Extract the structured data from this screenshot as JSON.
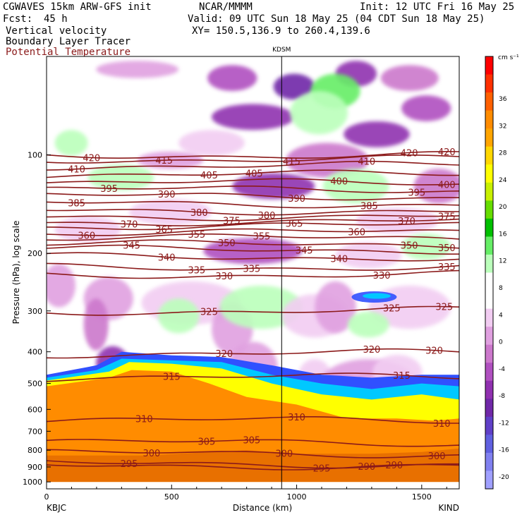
{
  "header": {
    "model": "CGWAVES 15km ARW-GFS init",
    "org": "NCAR/MMMM",
    "init": "Init: 12 UTC Fri 16 May 25",
    "fcst_label": "Fcst:",
    "fcst_value": "45 h",
    "valid": "Valid: 09 UTC Sun 18 May 25 (04 CDT Sun 18 May 25)",
    "field1": "Vertical velocity",
    "field2": "Boundary Layer Tracer",
    "field3": "Potential Temperature",
    "xy": "XY= 150.5,136.9 to 260.4,139.6"
  },
  "colors": {
    "theta_contour": "#8b1a1a",
    "panel_border": "#000000"
  },
  "chart_data": {
    "type": "heatmap",
    "xlabel": "Distance (km)",
    "ylabel": "Pressure (hPa), log scale",
    "x_range": [
      0,
      1650
    ],
    "x_ticks": [
      0,
      500,
      1000,
      1500
    ],
    "y_range": [
      1050,
      50
    ],
    "y_scale": "log",
    "y_ticks": [
      100,
      200,
      300,
      400,
      500,
      600,
      700,
      800,
      900,
      1000
    ],
    "station_left": "KBJC",
    "station_right": "KIND",
    "station_marker": {
      "label": "KDSM",
      "distance_km": 940
    },
    "colorbar": {
      "units": "cm s⁻¹",
      "levels": [
        36,
        32,
        28,
        24,
        20,
        16,
        12,
        8,
        4,
        0,
        -4,
        -8,
        -12,
        -16,
        -20
      ],
      "colors": [
        "#ff0000",
        "#ff3000",
        "#ff6000",
        "#ff8c00",
        "#ffa500",
        "#ffd700",
        "#ffff00",
        "#c8f000",
        "#66dd00",
        "#00c000",
        "#66ee66",
        "#bbffbb",
        "#ffffff",
        "#ffffff",
        "#f2cdf2",
        "#e0a0e0",
        "#cc78cc",
        "#b050c0",
        "#9030b0",
        "#7028a8",
        "#6040c8",
        "#6060e0",
        "#8080f0",
        "#a0a0ff"
      ]
    },
    "theta_contours": [
      {
        "value": 420,
        "pressure_hPa": 100,
        "labels": [
          {
            "x": 180,
            "t": "420"
          },
          {
            "x": 1450,
            "t": "420"
          },
          {
            "x": 1600,
            "t": "420"
          }
        ]
      },
      {
        "value": 415,
        "pressure_hPa": 103,
        "labels": [
          {
            "x": 470,
            "t": "415"
          },
          {
            "x": 980,
            "t": "415"
          }
        ]
      },
      {
        "value": 410,
        "pressure_hPa": 108,
        "labels": [
          {
            "x": 120,
            "t": "410"
          },
          {
            "x": 1280,
            "t": "410"
          }
        ]
      },
      {
        "value": 405,
        "pressure_hPa": 115,
        "labels": [
          {
            "x": 650,
            "t": "405"
          },
          {
            "x": 830,
            "t": "405"
          }
        ]
      },
      {
        "value": 400,
        "pressure_hPa": 122,
        "labels": [
          {
            "x": 1170,
            "t": "400"
          },
          {
            "x": 1600,
            "t": "400"
          }
        ]
      },
      {
        "value": 395,
        "pressure_hPa": 128,
        "labels": [
          {
            "x": 250,
            "t": "395"
          },
          {
            "x": 1480,
            "t": "395"
          }
        ]
      },
      {
        "value": 390,
        "pressure_hPa": 134,
        "labels": [
          {
            "x": 480,
            "t": "390"
          },
          {
            "x": 1000,
            "t": "390"
          }
        ]
      },
      {
        "value": 385,
        "pressure_hPa": 141,
        "labels": [
          {
            "x": 120,
            "t": "385"
          },
          {
            "x": 1290,
            "t": "385"
          }
        ]
      },
      {
        "value": 380,
        "pressure_hPa": 148,
        "labels": [
          {
            "x": 610,
            "t": "380"
          },
          {
            "x": 880,
            "t": "380"
          }
        ]
      },
      {
        "value": 375,
        "pressure_hPa": 154,
        "labels": [
          {
            "x": 740,
            "t": "375"
          },
          {
            "x": 1600,
            "t": "375"
          }
        ]
      },
      {
        "value": 370,
        "pressure_hPa": 160,
        "labels": [
          {
            "x": 330,
            "t": "370"
          },
          {
            "x": 1440,
            "t": "370"
          }
        ]
      },
      {
        "value": 365,
        "pressure_hPa": 165,
        "labels": [
          {
            "x": 470,
            "t": "365"
          },
          {
            "x": 990,
            "t": "365"
          }
        ]
      },
      {
        "value": 360,
        "pressure_hPa": 173,
        "labels": [
          {
            "x": 160,
            "t": "360"
          },
          {
            "x": 1240,
            "t": "360"
          }
        ]
      },
      {
        "value": 355,
        "pressure_hPa": 180,
        "labels": [
          {
            "x": 600,
            "t": "355"
          },
          {
            "x": 860,
            "t": "355"
          }
        ]
      },
      {
        "value": 350,
        "pressure_hPa": 188,
        "labels": [
          {
            "x": 720,
            "t": "350"
          },
          {
            "x": 1450,
            "t": "350"
          },
          {
            "x": 1600,
            "t": "350"
          }
        ]
      },
      {
        "value": 345,
        "pressure_hPa": 195,
        "labels": [
          {
            "x": 340,
            "t": "345"
          },
          {
            "x": 1030,
            "t": "345"
          }
        ]
      },
      {
        "value": 340,
        "pressure_hPa": 205,
        "labels": [
          {
            "x": 480,
            "t": "340"
          },
          {
            "x": 1170,
            "t": "340"
          }
        ]
      },
      {
        "value": 335,
        "pressure_hPa": 220,
        "labels": [
          {
            "x": 600,
            "t": "335"
          },
          {
            "x": 820,
            "t": "335"
          },
          {
            "x": 1600,
            "t": "335"
          }
        ]
      },
      {
        "value": 330,
        "pressure_hPa": 232,
        "labels": [
          {
            "x": 710,
            "t": "330"
          },
          {
            "x": 1340,
            "t": "330"
          }
        ]
      },
      {
        "value": 325,
        "pressure_hPa": 300,
        "labels": [
          {
            "x": 650,
            "t": "325"
          },
          {
            "x": 1380,
            "t": "325"
          },
          {
            "x": 1590,
            "t": "325"
          }
        ]
      },
      {
        "value": 320,
        "pressure_hPa": 405,
        "labels": [
          {
            "x": 710,
            "t": "320"
          },
          {
            "x": 1300,
            "t": "320"
          },
          {
            "x": 1550,
            "t": "320"
          }
        ]
      },
      {
        "value": 315,
        "pressure_hPa": 480,
        "labels": [
          {
            "x": 500,
            "t": "315"
          },
          {
            "x": 1420,
            "t": "315"
          }
        ]
      },
      {
        "value": 310,
        "pressure_hPa": 650,
        "labels": [
          {
            "x": 390,
            "t": "310"
          },
          {
            "x": 1000,
            "t": "310"
          },
          {
            "x": 1580,
            "t": "310"
          }
        ]
      },
      {
        "value": 305,
        "pressure_hPa": 760,
        "labels": [
          {
            "x": 640,
            "t": "305"
          },
          {
            "x": 820,
            "t": "305"
          }
        ]
      },
      {
        "value": 300,
        "pressure_hPa": 820,
        "labels": [
          {
            "x": 420,
            "t": "300"
          },
          {
            "x": 950,
            "t": "300"
          },
          {
            "x": 1560,
            "t": "300"
          }
        ]
      },
      {
        "value": 295,
        "pressure_hPa": 880,
        "labels": [
          {
            "x": 330,
            "t": "295"
          },
          {
            "x": 1100,
            "t": "295"
          }
        ]
      },
      {
        "value": 290,
        "pressure_hPa": 890,
        "labels": [
          {
            "x": 1280,
            "t": "290"
          },
          {
            "x": 1390,
            "t": "290"
          }
        ]
      }
    ]
  }
}
